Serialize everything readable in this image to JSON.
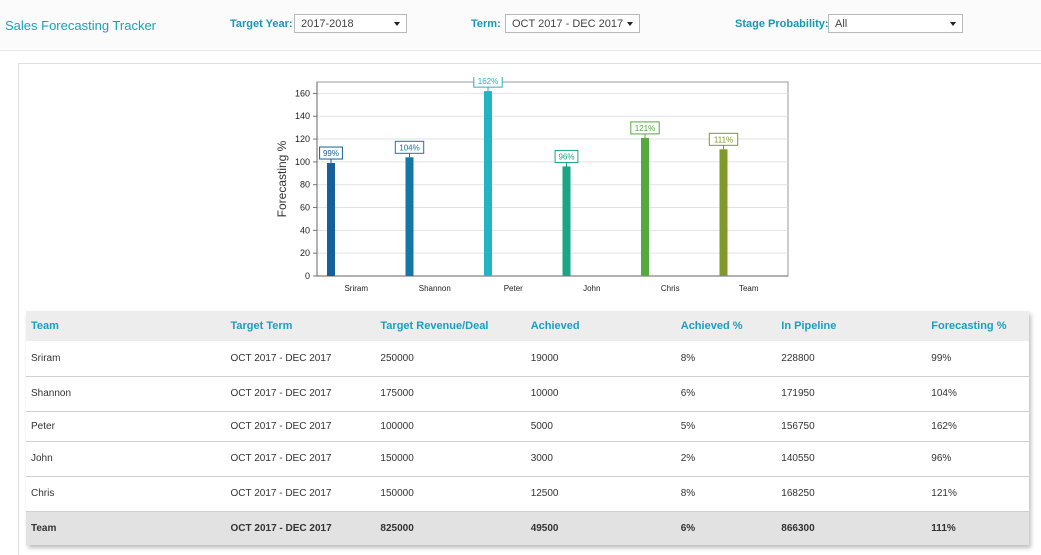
{
  "app": {
    "title": "Sales Forecasting Tracker"
  },
  "filters": {
    "target_year": {
      "label": "Target Year:",
      "value": "2017-2018"
    },
    "term": {
      "label": "Term:",
      "value": "OCT 2017 - DEC 2017"
    },
    "stage_probability": {
      "label": "Stage Probability:",
      "value": "All"
    }
  },
  "chart_data": {
    "type": "bar",
    "categories": [
      "Sriram",
      "Shannon",
      "Peter",
      "John",
      "Chris",
      "Team"
    ],
    "values": [
      99,
      104,
      162,
      96,
      121,
      111
    ],
    "data_labels": [
      "99%",
      "104%",
      "162%",
      "96%",
      "121%",
      "111%"
    ],
    "ylabel": "Forecasting %",
    "xlabel": "",
    "ylim": [
      0,
      170
    ],
    "yticks": [
      0,
      20,
      40,
      60,
      80,
      100,
      120,
      140,
      160
    ],
    "grid": true,
    "colors": [
      "#155f9a",
      "#1577a6",
      "#21b4c5",
      "#1aa585",
      "#54a93f",
      "#7f9a2b"
    ]
  },
  "table": {
    "columns": [
      "Team",
      "Target Term",
      "Target Revenue/Deal",
      "Achieved",
      "Achieved %",
      "In Pipeline",
      "Forecasting %"
    ],
    "rows": [
      [
        "Sriram",
        "OCT 2017 - DEC 2017",
        "250000",
        "19000",
        "8%",
        "228800",
        "99%"
      ],
      [
        "Shannon",
        "OCT 2017 - DEC 2017",
        "175000",
        "10000",
        "6%",
        "171950",
        "104%"
      ],
      [
        "Peter",
        "OCT 2017 - DEC 2017",
        "100000",
        "5000",
        "5%",
        "156750",
        "162%"
      ],
      [
        "John",
        "OCT 2017 - DEC 2017",
        "150000",
        "3000",
        "2%",
        "140550",
        "96%"
      ],
      [
        "Chris",
        "OCT 2017 - DEC 2017",
        "150000",
        "12500",
        "8%",
        "168250",
        "121%"
      ]
    ],
    "footer": [
      "Team",
      "OCT 2017 - DEC 2017",
      "825000",
      "49500",
      "6%",
      "866300",
      "111%"
    ]
  }
}
